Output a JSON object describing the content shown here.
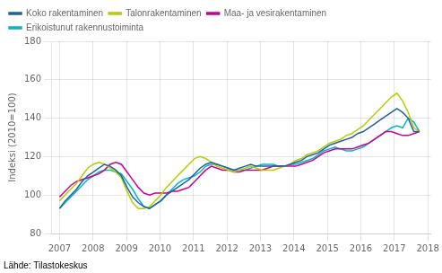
{
  "chart_data": {
    "type": "line",
    "y_label": "Indeksi (2010=100)",
    "annotations": [
      "Lähde: Tilastokeskus"
    ],
    "x": [
      2007,
      2007.16796875,
      2007.3359375,
      2007.50390625,
      2007.671875,
      2007.83984375,
      2008.0078125,
      2008.17578125,
      2008.34375,
      2008.51171875,
      2008.6796875,
      2008.84765625,
      2009.015625,
      2009.18359375,
      2009.3515625,
      2009.51953125,
      2009.6875,
      2009.85546875,
      2010.0234375,
      2010.19140625,
      2010.359375,
      2010.52734375,
      2010.6953125,
      2010.86328125,
      2011.03125,
      2011.19921875,
      2011.3671875,
      2011.53515625,
      2011.703125,
      2011.87109375,
      2012.0390625,
      2012.20703125,
      2012.375,
      2012.54296875,
      2012.7109375,
      2012.87890625,
      2013.046875,
      2013.21484375,
      2013.3828125,
      2013.55078125,
      2013.71875,
      2013.88671875,
      2014.0546875,
      2014.22265625,
      2014.390625,
      2014.55859375,
      2014.7265625,
      2014.89453125,
      2015.0625,
      2015.23046875,
      2015.3984375,
      2015.56640625,
      2015.734375,
      2015.90234375,
      2016.0703125,
      2016.23828125,
      2016.40625,
      2016.57421875,
      2016.7421875,
      2016.91015625,
      2017.078125,
      2017.24609375,
      2017.4140625,
      2017.58203125,
      2017.75
    ],
    "series": [
      {
        "name": "Koko rakentaminen",
        "color": "#2060a0",
        "values": [
          93,
          97,
          100,
          103,
          107,
          110,
          112,
          114,
          116,
          115,
          113,
          110,
          104,
          99,
          96,
          94,
          93,
          95,
          97,
          100,
          102,
          104,
          106,
          108,
          111,
          114,
          116,
          117,
          116,
          115,
          114,
          113,
          114,
          115,
          116,
          115,
          115,
          115,
          115,
          115,
          115,
          116,
          117,
          118,
          120,
          121,
          122,
          124,
          126,
          127,
          128,
          129,
          130,
          132,
          133,
          135,
          137,
          139,
          141,
          143,
          145,
          143,
          140,
          133,
          133
        ]
      },
      {
        "name": "Talonrakentaminen",
        "color": "#b8cc00",
        "values": [
          97,
          100,
          103,
          106,
          110,
          114,
          116,
          117,
          116,
          114,
          112,
          109,
          102,
          96,
          93,
          93,
          94,
          97,
          100,
          104,
          107,
          110,
          113,
          116,
          119,
          120,
          119,
          117,
          115,
          114,
          113,
          112,
          113,
          114,
          115,
          114,
          113,
          113,
          113,
          114,
          115,
          116,
          118,
          119,
          121,
          122,
          123,
          125,
          127,
          128,
          129,
          131,
          132,
          134,
          136,
          139,
          142,
          145,
          148,
          151,
          153,
          149,
          143,
          135,
          133
        ]
      },
      {
        "name": "Maa- ja vesirakentaminen",
        "color": "#cc0090",
        "values": [
          99,
          102,
          105,
          107,
          108,
          109,
          110,
          111,
          113,
          116,
          117,
          116,
          112,
          108,
          104,
          101,
          100,
          101,
          101,
          101,
          102,
          102,
          103,
          104,
          107,
          110,
          113,
          115,
          114,
          113,
          113,
          112,
          112,
          113,
          113,
          113,
          113,
          114,
          115,
          115,
          115,
          115,
          115,
          116,
          117,
          118,
          120,
          122,
          123,
          124,
          124,
          124,
          124,
          125,
          126,
          127,
          129,
          131,
          133,
          133,
          132,
          131,
          131,
          132,
          133
        ]
      },
      {
        "name": "Erikoistunut rakennustoiminta",
        "color": "#00b8c8",
        "values": [
          93,
          96,
          99,
          102,
          105,
          108,
          110,
          112,
          113,
          113,
          112,
          111,
          107,
          103,
          98,
          94,
          93,
          95,
          97,
          100,
          103,
          106,
          108,
          109,
          110,
          112,
          115,
          116,
          116,
          115,
          114,
          113,
          113,
          113,
          114,
          115,
          116,
          116,
          116,
          115,
          115,
          116,
          116,
          117,
          118,
          119,
          121,
          123,
          124,
          125,
          124,
          123,
          123,
          124,
          125,
          127,
          129,
          131,
          133,
          135,
          136,
          135,
          140,
          138,
          133
        ]
      }
    ],
    "xlim": [
      2006.75,
      2018.1
    ],
    "xticks": [
      2007,
      2008,
      2009,
      2010,
      2011,
      2012,
      2013,
      2014,
      2015,
      2016,
      2017,
      2018
    ],
    "ylim": [
      80,
      180
    ],
    "yticks": [
      80,
      100,
      120,
      140,
      160,
      180
    ],
    "grid": true,
    "legend": "upper left"
  }
}
